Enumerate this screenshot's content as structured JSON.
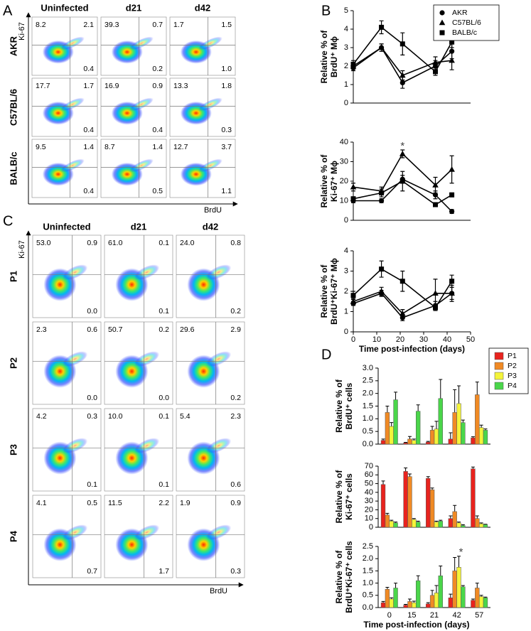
{
  "panel_labels": [
    "A",
    "B",
    "C",
    "D"
  ],
  "flow_a": {
    "columns": [
      "Uninfected",
      "d21",
      "d42"
    ],
    "y_label": "Ki-67",
    "x_label": "BrdU",
    "rows": [
      {
        "name": "AKR",
        "quadrants": [
          [
            "8.2",
            "2.1",
            "0.4"
          ],
          [
            "39.3",
            "0.7",
            "0.2"
          ],
          [
            "1.7",
            "1.5",
            "1.0"
          ]
        ]
      },
      {
        "name": "C57BL/6",
        "quadrants": [
          [
            "17.7",
            "1.7",
            "0.4"
          ],
          [
            "16.9",
            "0.9",
            "0.4"
          ],
          [
            "13.3",
            "1.8",
            "0.3"
          ]
        ]
      },
      {
        "name": "BALB/c",
        "quadrants": [
          [
            "9.5",
            "1.4",
            "0.4"
          ],
          [
            "8.7",
            "1.4",
            "0.5"
          ],
          [
            "12.7",
            "3.7",
            "1.1"
          ]
        ]
      }
    ]
  },
  "flow_c": {
    "columns": [
      "Uninfected",
      "d21",
      "d42"
    ],
    "y_label": "Ki-67",
    "x_label": "BrdU",
    "rows": [
      {
        "name": "P1",
        "quadrants": [
          [
            "53.0",
            "0.9",
            "0.0"
          ],
          [
            "61.0",
            "0.1",
            "0.1"
          ],
          [
            "24.0",
            "0.8",
            "0.2"
          ]
        ]
      },
      {
        "name": "P2",
        "quadrants": [
          [
            "2.3",
            "0.6",
            "0.0"
          ],
          [
            "50.7",
            "0.2",
            "0.0"
          ],
          [
            "29.6",
            "2.9",
            "0.2"
          ]
        ]
      },
      {
        "name": "P3",
        "quadrants": [
          [
            "4.2",
            "0.3",
            "0.1"
          ],
          [
            "10.0",
            "0.1",
            "0.1"
          ],
          [
            "5.4",
            "2.3",
            "0.6"
          ]
        ]
      },
      {
        "name": "P4",
        "quadrants": [
          [
            "4.1",
            "0.5",
            "0.7"
          ],
          [
            "11.5",
            "2.2",
            "1.7"
          ],
          [
            "1.9",
            "0.9",
            "0.3"
          ]
        ]
      }
    ]
  },
  "chart_data": [
    {
      "type": "line",
      "ylabel": [
        "Relative % of",
        "BrdU⁺ Mϕ"
      ],
      "x": [
        0,
        12,
        21,
        35,
        42
      ],
      "xlim": [
        0,
        50
      ],
      "ylim": [
        0,
        5
      ],
      "yticks": [
        0,
        1,
        2,
        3,
        4,
        5
      ],
      "legend": "upper right",
      "series": [
        {
          "name": "AKR",
          "color": "#000000",
          "marker": "circle",
          "values": [
            1.9,
            3.0,
            1.1,
            2.0,
            2.8
          ],
          "errors": [
            0.15,
            0.2,
            0.3,
            0.3,
            0.4
          ]
        },
        {
          "name": "C57BL/6",
          "color": "#000000",
          "marker": "triangle",
          "values": [
            2.0,
            3.0,
            1.5,
            2.2,
            2.3
          ],
          "errors": [
            0.15,
            0.2,
            0.25,
            0.3,
            0.5
          ]
        },
        {
          "name": "BALB/c",
          "color": "#000000",
          "marker": "square",
          "values": [
            2.1,
            4.1,
            3.2,
            1.7,
            3.3
          ],
          "errors": [
            0.2,
            0.35,
            0.6,
            0.2,
            0.3
          ]
        }
      ]
    },
    {
      "type": "line",
      "ylabel": [
        "Relative % of",
        "Ki-67⁺ Mϕ"
      ],
      "x": [
        0,
        12,
        21,
        35,
        42
      ],
      "xlim": [
        0,
        50
      ],
      "ylim": [
        0,
        40
      ],
      "yticks": [
        0,
        10,
        20,
        30,
        40
      ],
      "annotations": [
        {
          "text": "*",
          "x": 21
        }
      ],
      "series": [
        {
          "color": "#000000",
          "marker": "circle",
          "values": [
            10,
            10,
            21,
            13,
            4.5
          ],
          "errors": [
            1,
            1,
            2,
            2,
            1
          ]
        },
        {
          "color": "#000000",
          "marker": "triangle",
          "values": [
            17,
            15,
            34,
            18,
            26
          ],
          "errors": [
            2,
            2,
            2,
            4,
            7
          ]
        },
        {
          "color": "#000000",
          "marker": "square",
          "values": [
            11,
            14,
            20,
            8,
            13
          ],
          "errors": [
            1,
            2,
            5,
            1,
            1
          ]
        }
      ]
    },
    {
      "type": "line",
      "ylabel": [
        "Relative % of",
        "BrdU⁺Ki-67⁺ Mϕ"
      ],
      "xlabel": "Time post-infection (days)",
      "x": [
        0,
        12,
        21,
        35,
        42
      ],
      "xlim": [
        0,
        50
      ],
      "xticks": [
        0,
        10,
        20,
        30,
        40,
        50
      ],
      "ylim": [
        0,
        4
      ],
      "yticks": [
        0,
        1,
        2,
        3,
        4
      ],
      "series": [
        {
          "color": "#000000",
          "marker": "circle",
          "values": [
            1.4,
            1.9,
            0.7,
            1.3,
            1.9
          ],
          "errors": [
            0.1,
            0.15,
            0.15,
            0.2,
            0.4
          ]
        },
        {
          "color": "#000000",
          "marker": "triangle",
          "values": [
            1.5,
            2.0,
            0.9,
            1.9,
            1.9
          ],
          "errors": [
            0.15,
            0.2,
            0.2,
            0.7,
            0.3
          ]
        },
        {
          "color": "#000000",
          "marker": "square",
          "values": [
            1.8,
            3.1,
            2.5,
            1.2,
            2.5
          ],
          "errors": [
            0.2,
            0.4,
            0.5,
            0.15,
            0.3
          ]
        }
      ]
    },
    {
      "type": "bar",
      "ylabel": [
        "Relative % of",
        "BrdU⁺ cells"
      ],
      "ylim": [
        0,
        3
      ],
      "legend": "upper right",
      "yticks": [
        {
          "value": 0,
          "label": "0.0"
        },
        {
          "value": 0.5,
          "label": "0.5"
        },
        {
          "value": 1,
          "label": "1.0"
        },
        {
          "value": 1.5,
          "label": "1.5"
        },
        {
          "value": 2,
          "label": "2.0"
        },
        {
          "value": 2.5,
          "label": "2.5"
        },
        {
          "value": 3,
          "label": "3.0"
        }
      ],
      "series": [
        {
          "name": "P1",
          "color": "#e8231e",
          "values": [
            0.15,
            0.05,
            0.08,
            0.2,
            0.25
          ],
          "errors": [
            0.05,
            0.02,
            0.03,
            0.25,
            0.04
          ]
        },
        {
          "name": "P2",
          "color": "#f08a24",
          "values": [
            1.25,
            0.2,
            0.55,
            1.25,
            1.95
          ],
          "errors": [
            0.25,
            0.1,
            0.15,
            0.9,
            0.5
          ]
        },
        {
          "name": "P3",
          "color": "#f4f43a",
          "values": [
            0.7,
            0.15,
            0.6,
            1.6,
            0.65
          ],
          "errors": [
            0.15,
            0.05,
            0.3,
            0.7,
            0.1
          ]
        },
        {
          "name": "P4",
          "color": "#4ad64a",
          "values": [
            1.75,
            1.3,
            1.8,
            0.85,
            0.55
          ],
          "errors": [
            0.3,
            0.25,
            0.75,
            0.1,
            0.05
          ]
        }
      ]
    },
    {
      "type": "bar",
      "ylabel": [
        "Relative % of",
        "Ki-67⁺ cells"
      ],
      "ylim": [
        0,
        70
      ],
      "yticks": [
        0,
        10,
        20,
        30,
        40,
        50,
        60,
        70
      ],
      "series": [
        {
          "color": "#e8231e",
          "values": [
            49,
            64,
            56,
            10,
            67
          ],
          "errors": [
            4,
            4,
            2,
            3,
            2
          ]
        },
        {
          "color": "#f08a24",
          "values": [
            14,
            58,
            43,
            18,
            10
          ],
          "errors": [
            2,
            3,
            2,
            7,
            3
          ]
        },
        {
          "color": "#f4f43a",
          "values": [
            7,
            9,
            6,
            5,
            4
          ],
          "errors": [
            1,
            1,
            1,
            1,
            1
          ]
        },
        {
          "color": "#4ad64a",
          "values": [
            5,
            6,
            7,
            2,
            3
          ],
          "errors": [
            1,
            1,
            1,
            1,
            0.5
          ]
        }
      ]
    },
    {
      "type": "bar",
      "ylabel": [
        "Relative % of",
        "BrdU⁺Ki-67⁺ cells"
      ],
      "xlabel": "Time post-infection (days)",
      "categories": [
        "0",
        "15",
        "21",
        "42",
        "57"
      ],
      "ylim": [
        0,
        2.5
      ],
      "yticks": [
        {
          "value": 0,
          "label": "0.0"
        },
        {
          "value": 0.5,
          "label": "0.5"
        },
        {
          "value": 1,
          "label": "1.0"
        },
        {
          "value": 1.5,
          "label": "1.5"
        },
        {
          "value": 2,
          "label": "2.0"
        },
        {
          "value": 2.5,
          "label": "2.5"
        }
      ],
      "annotations": [
        {
          "text": "*",
          "x": "42"
        }
      ],
      "series": [
        {
          "color": "#e8231e",
          "values": [
            0.2,
            0.1,
            0.15,
            0.4,
            0.3
          ],
          "errors": [
            0.05,
            0.03,
            0.05,
            0.15,
            0.05
          ]
        },
        {
          "color": "#f08a24",
          "values": [
            0.75,
            0.25,
            0.5,
            1.5,
            0.8
          ],
          "errors": [
            0.08,
            0.1,
            0.2,
            0.55,
            0.2
          ]
        },
        {
          "color": "#f4f43a",
          "values": [
            0.35,
            0.2,
            0.6,
            1.65,
            0.45
          ],
          "errors": [
            0.05,
            0.06,
            0.3,
            0.45,
            0.05
          ]
        },
        {
          "color": "#4ad64a",
          "values": [
            0.8,
            1.1,
            1.3,
            0.85,
            0.4
          ],
          "errors": [
            0.2,
            0.2,
            0.4,
            0.05,
            0.03
          ]
        }
      ]
    }
  ]
}
